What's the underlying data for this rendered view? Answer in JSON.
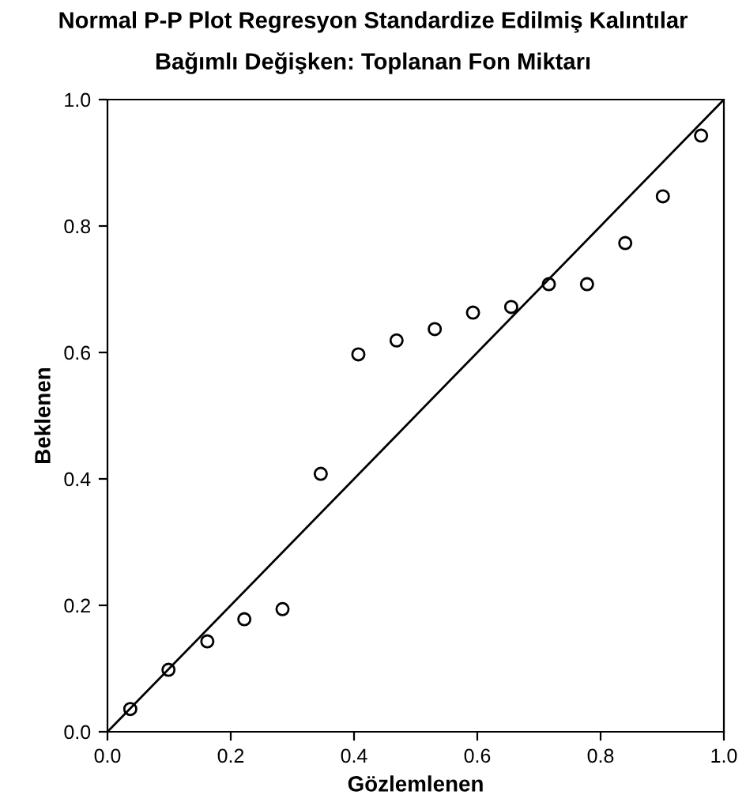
{
  "chart_data": {
    "type": "scatter",
    "title": "Normal P-P Plot Regresyon Standardize Edilmiş Kalıntılar",
    "subtitle": "Bağımlı Değişken: Toplanan Fon Miktarı",
    "xlabel": "Gözlemlenen",
    "ylabel": "Beklenen",
    "grid": false,
    "legend": false,
    "xlim": [
      0,
      1
    ],
    "ylim": [
      0,
      1
    ],
    "xticks": [
      {
        "value": 0,
        "label": "0.0"
      },
      0.2,
      0.4,
      0.6,
      0.8,
      {
        "value": 1,
        "label": "1.0"
      }
    ],
    "yticks": [
      {
        "value": 0,
        "label": "0.0"
      },
      0.2,
      0.4,
      0.6,
      0.8,
      {
        "value": 1,
        "label": "1.0"
      }
    ],
    "series": [
      {
        "marker": "circle",
        "color": "#000000",
        "x": [
          0.037,
          0.099,
          0.162,
          0.222,
          0.284,
          0.346,
          0.407,
          0.469,
          0.531,
          0.593,
          0.655,
          0.716,
          0.778,
          0.84,
          0.901,
          0.963
        ],
        "values": [
          0.036,
          0.098,
          0.143,
          0.178,
          0.194,
          0.408,
          0.597,
          0.619,
          0.637,
          0.663,
          0.672,
          0.708,
          0.708,
          0.773,
          0.847,
          0.943
        ]
      },
      {
        "type": "line",
        "color": "#000000",
        "x": [
          0,
          1
        ],
        "values": [
          0,
          1
        ]
      }
    ]
  }
}
